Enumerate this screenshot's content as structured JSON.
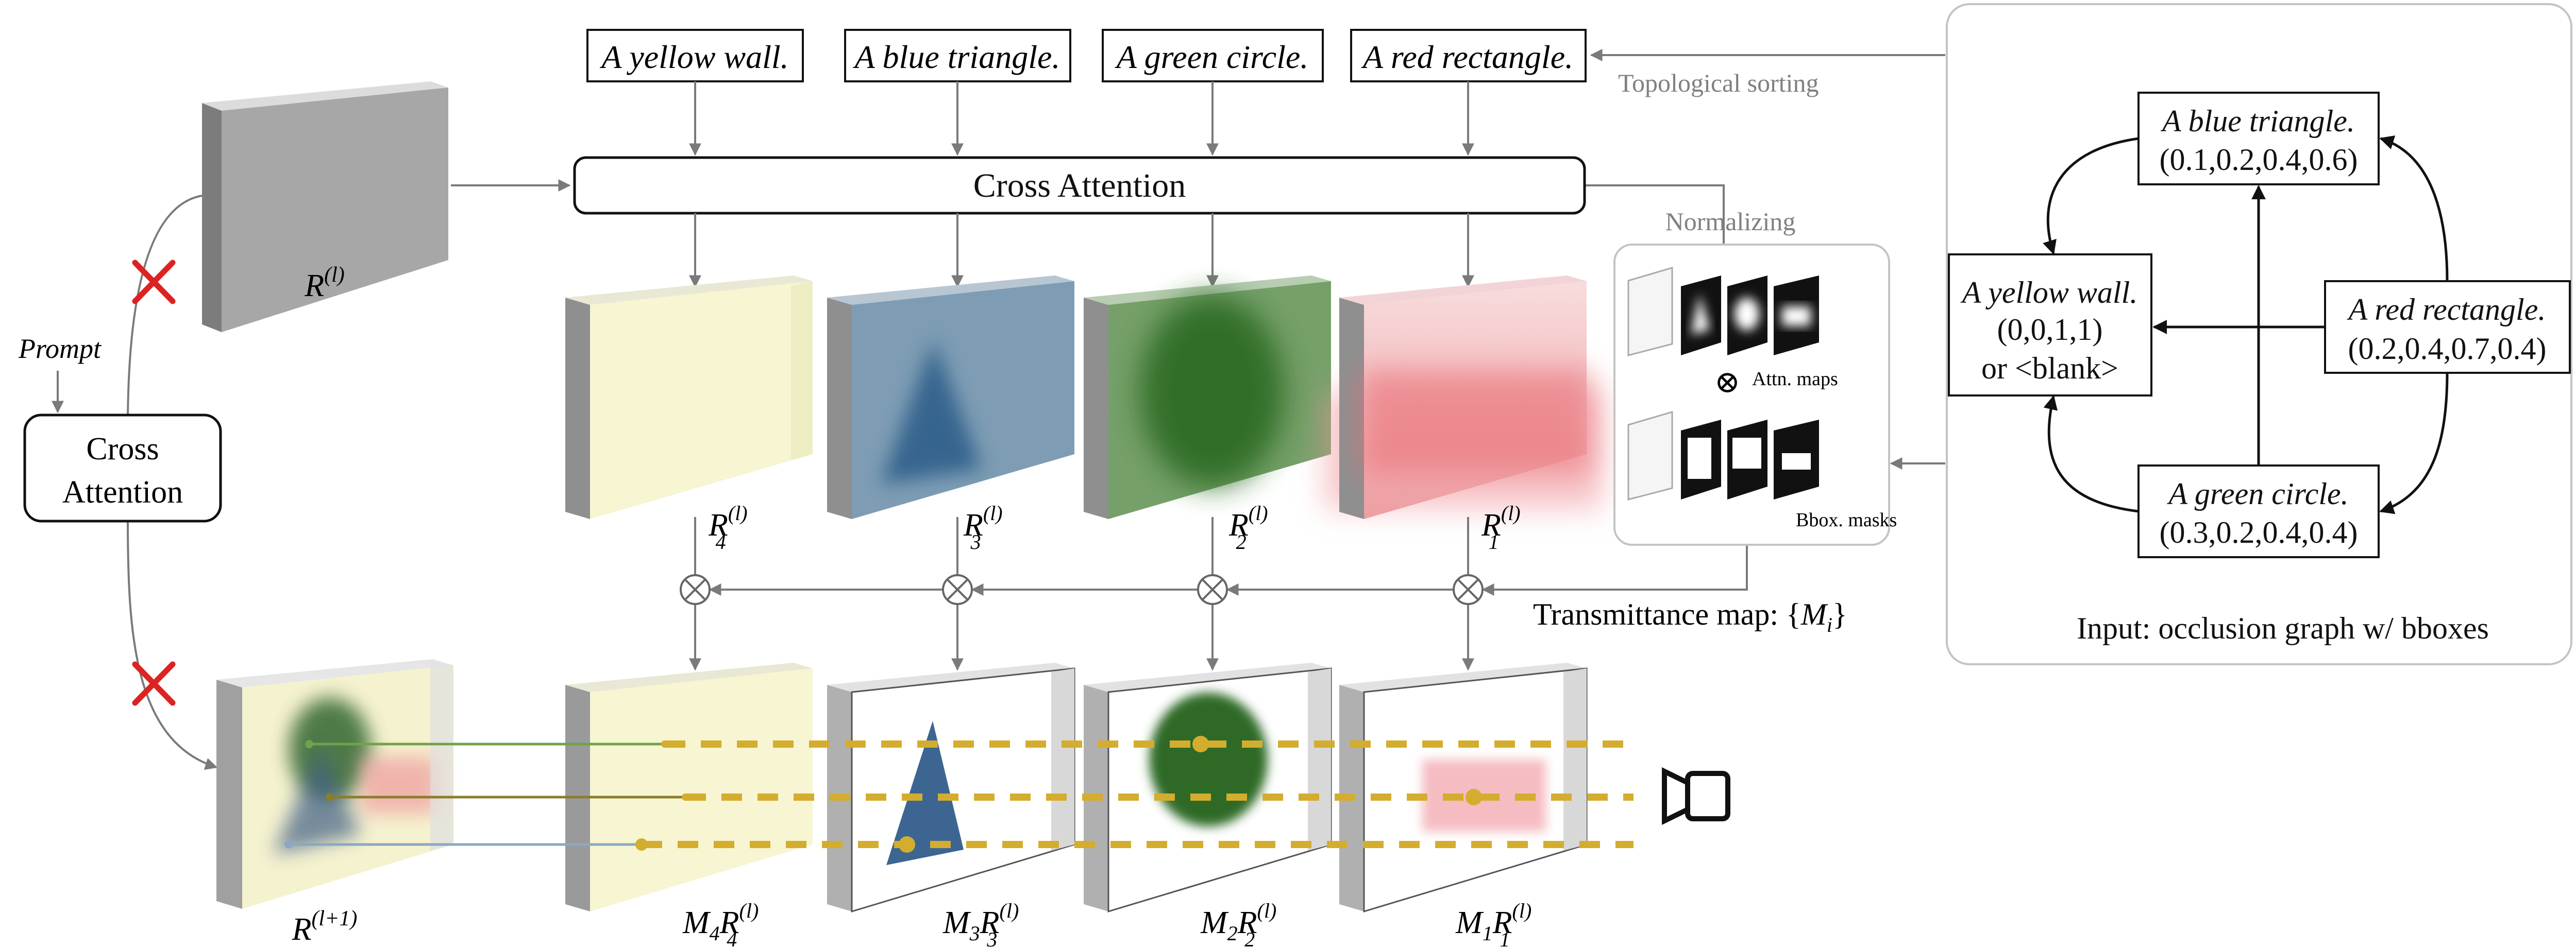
{
  "colors": {
    "line": "#7a7a7a",
    "dark": "#111111",
    "panel_border": "#c4c4c4",
    "cross_red": "#dd2222",
    "gold": "#d4ad2e",
    "green_ray": "#6fa34a",
    "olive_ray": "#8a7d2c",
    "blue_ray": "#8aa8c4",
    "yellow_layer": "#f7f5d2",
    "blue_layer": "#7b9bb4",
    "green_layer": "#6f9a62",
    "red_layer": "#f3c7c9",
    "gray_feature": "#a8a8a8"
  },
  "prompts": [
    {
      "text": "A yellow wall."
    },
    {
      "text": "A blue triangle."
    },
    {
      "text": "A green circle."
    },
    {
      "text": "A red rectangle."
    }
  ],
  "cross_attention_main": "Cross Attention",
  "cross_attention_left": {
    "line1": "Cross",
    "line2": "Attention"
  },
  "prompt_label": "Prompt",
  "topological_sorting": "Topological sorting",
  "normalizing": "Normalizing",
  "attn_maps": "Attn. maps",
  "bbox_masks": "Bbox. masks",
  "otimes": "⊗",
  "transmittance": {
    "prefix": "Transmittance map: {",
    "sym": "M",
    "sub": "i",
    "suffix": "}"
  },
  "input_r": {
    "base": "R",
    "sup": "(l)"
  },
  "output_r": {
    "base": "R",
    "sup": "(l+1)"
  },
  "layer_labels": [
    {
      "base": "R",
      "sub": "4",
      "sup": "(l)"
    },
    {
      "base": "R",
      "sub": "3",
      "sup": "(l)"
    },
    {
      "base": "R",
      "sub": "2",
      "sup": "(l)"
    },
    {
      "base": "R",
      "sub": "1",
      "sup": "(l)"
    }
  ],
  "masked_labels": [
    {
      "m": "M",
      "msub": "4",
      "base": "R",
      "sub": "4",
      "sup": "(l)"
    },
    {
      "m": "M",
      "msub": "3",
      "base": "R",
      "sub": "3",
      "sup": "(l)"
    },
    {
      "m": "M",
      "msub": "2",
      "base": "R",
      "sub": "2",
      "sup": "(l)"
    },
    {
      "m": "M",
      "msub": "1",
      "base": "R",
      "sub": "1",
      "sup": "(l)"
    }
  ],
  "graph": {
    "blue": {
      "title": "A blue triangle.",
      "box": "(0.1,0.2,0.4,0.6)"
    },
    "yellow": {
      "title": "A yellow wall.",
      "box": "(0,0,1,1)",
      "alt": "or <blank>"
    },
    "red": {
      "title": "A red rectangle.",
      "box": "(0.2,0.4,0.7,0.4)"
    },
    "green": {
      "title": "A green circle.",
      "box": "(0.3,0.2,0.4,0.4)"
    },
    "caption": "Input: occlusion graph w/ bboxes"
  }
}
